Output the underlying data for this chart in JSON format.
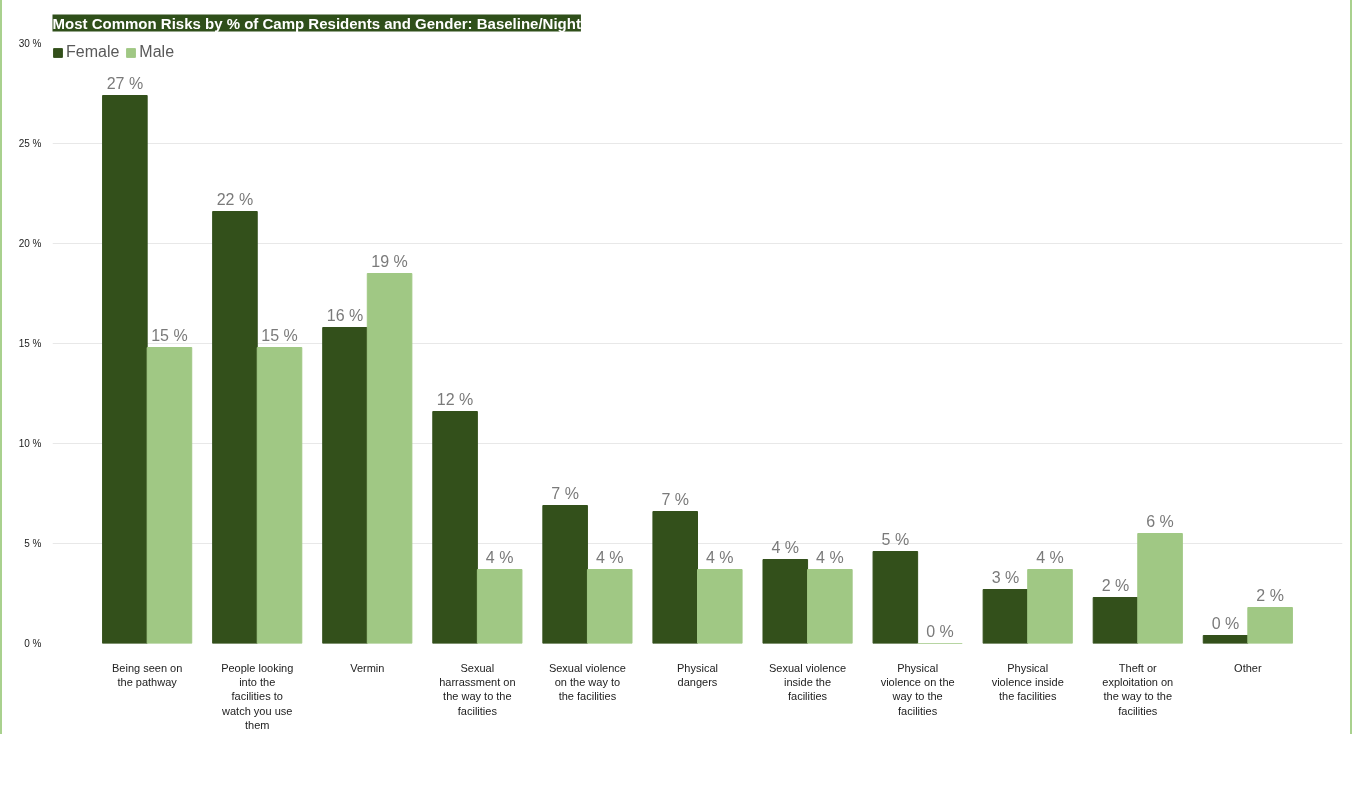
{
  "chart_data": {
    "type": "bar",
    "title": "Most Common Risks by % of Camp Residents and Gender: Baseline/Night",
    "categories": [
      "Being seen on the pathway",
      "People looking into the facilities to watch you use them",
      "Vermin",
      "Sexual harrassment on the way to the facilities",
      "Sexual violence on the way to the facilities",
      "Physical dangers",
      "Sexual violence inside the facilities",
      "Physical violence on the way to the facilities",
      "Physical violence inside the facilities",
      "Theft or exploitation on the way to the facilities",
      "Other"
    ],
    "series": [
      {
        "name": "Female",
        "color": "#33501b",
        "values": [
          27.4,
          21.6,
          15.8,
          11.6,
          6.9,
          6.6,
          4.2,
          4.6,
          2.7,
          2.3,
          0.4
        ],
        "value_labels": [
          "27 %",
          "22 %",
          "16 %",
          "12 %",
          "7 %",
          "7 %",
          "4 %",
          "5 %",
          "3 %",
          "2 %",
          "0 %"
        ]
      },
      {
        "name": "Male",
        "color": "#a0c884",
        "values": [
          14.8,
          14.8,
          18.5,
          3.7,
          3.7,
          3.7,
          3.7,
          0,
          3.7,
          5.5,
          1.8
        ],
        "value_labels": [
          "15 %",
          "15 %",
          "19 %",
          "4 %",
          "4 %",
          "4 %",
          "4 %",
          "0 %",
          "4 %",
          "6 %",
          "2 %"
        ]
      }
    ],
    "ylim": [
      0,
      30
    ],
    "yticks": [
      {
        "value": 0,
        "label": "0 %"
      },
      {
        "value": 5,
        "label": "5 %"
      },
      {
        "value": 10,
        "label": "10 %"
      },
      {
        "value": 15,
        "label": "15 %"
      },
      {
        "value": 20,
        "label": "20 %"
      },
      {
        "value": 25,
        "label": "25 %"
      },
      {
        "value": 30,
        "label": "30 %"
      }
    ],
    "grid": "y",
    "legend": "top left"
  }
}
